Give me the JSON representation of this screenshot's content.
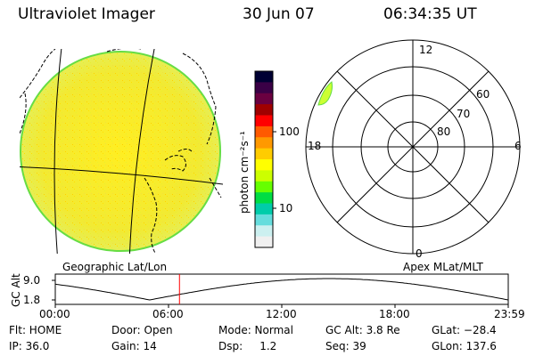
{
  "header": {
    "title": "Ultraviolet Imager",
    "date": "30 Jun 07",
    "time": "06:34:35 UT"
  },
  "colorbar": {
    "label": "photon cm⁻²s⁻¹",
    "ticks": [
      "100",
      "10"
    ],
    "colors": [
      "#000033",
      "#3a0046",
      "#6a0040",
      "#a00000",
      "#ff0000",
      "#ff5a00",
      "#ff9900",
      "#ffcc00",
      "#ffff00",
      "#ccff00",
      "#66ff00",
      "#00dd44",
      "#00ccaa",
      "#66dddd",
      "#ccf0f0",
      "#f0f0f0"
    ]
  },
  "polar_plot": {
    "mlt_labels": {
      "top": "12",
      "right": "6",
      "bottom": "0",
      "left": "18"
    },
    "lat_labels": [
      "60",
      "70",
      "80"
    ]
  },
  "panel_labels": {
    "left": "Geographic Lat/Lon",
    "right": "Apex MLat/MLT"
  },
  "altitude_plot": {
    "ylabel": "GC Alt",
    "yticks": [
      "9.0",
      "1.8"
    ],
    "xticks": [
      "00:00",
      "06:00",
      "12:00",
      "18:00",
      "23:59"
    ],
    "current_hour": 6.58
  },
  "status": {
    "flt": "Flt: HOME",
    "door": "Door: Open",
    "mode": "Mode: Normal",
    "gcalt": "GC Alt: 3.8 Re",
    "glat": "GLat: −28.4",
    "ip": "IP: 36.0",
    "gain": "Gain: 14",
    "dsp": "Dsp:     1.2",
    "seq": "Seq: 39",
    "glon": "GLon: 137.6"
  }
}
